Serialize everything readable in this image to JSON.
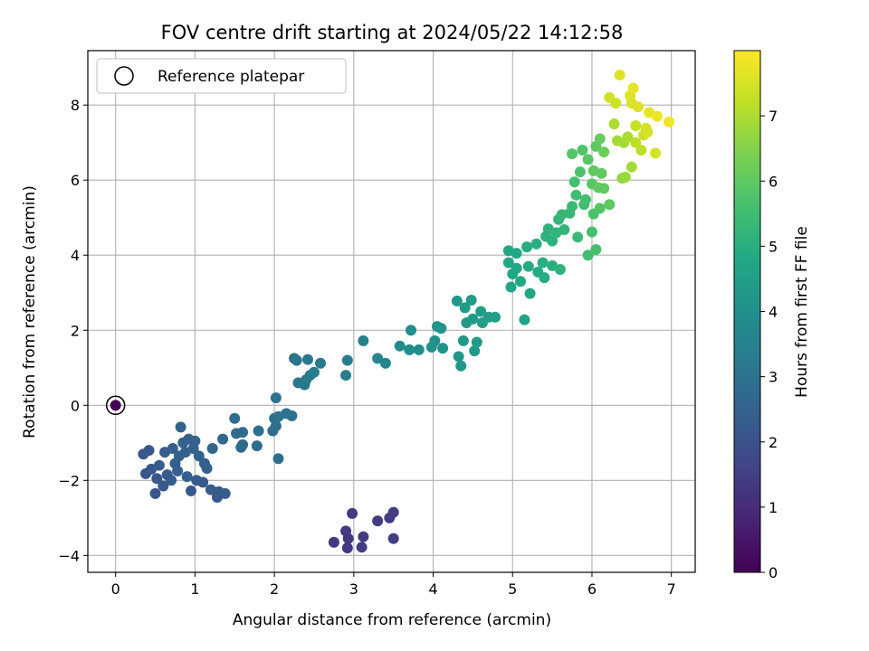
{
  "chart_data": {
    "type": "scatter",
    "title": "FOV centre drift starting at 2024/05/22 14:12:58",
    "xlabel": "Angular distance from reference (arcmin)",
    "ylabel": "Rotation from reference (arcmin)",
    "xlim": [
      -0.35,
      7.3
    ],
    "ylim": [
      -4.45,
      9.45
    ],
    "xticks": [
      0,
      1,
      2,
      3,
      4,
      5,
      6,
      7
    ],
    "yticks": [
      -4,
      -2,
      0,
      2,
      4,
      6,
      8
    ],
    "grid": true,
    "legend": {
      "placement": "top-left",
      "entries": [
        "Reference platepar"
      ]
    },
    "reference_point": {
      "x": 0,
      "y": 0
    },
    "colorbar": {
      "label": "Hours from first FF file",
      "colormap": "viridis",
      "range": [
        0,
        8
      ],
      "ticks": [
        0,
        1,
        2,
        3,
        4,
        5,
        6,
        7
      ]
    },
    "points": [
      [
        0,
        0,
        0.02
      ],
      [
        2.75,
        -3.65,
        1.3
      ],
      [
        2.9,
        -3.35,
        1.3
      ],
      [
        2.92,
        -3.8,
        1.3
      ],
      [
        2.93,
        -3.55,
        1.3
      ],
      [
        2.98,
        -2.88,
        1.35
      ],
      [
        3.1,
        -3.78,
        1.4
      ],
      [
        3.12,
        -3.5,
        1.4
      ],
      [
        3.3,
        -3.08,
        1.4
      ],
      [
        3.45,
        -3.0,
        1.45
      ],
      [
        3.5,
        -2.85,
        1.45
      ],
      [
        3.5,
        -3.55,
        1.45
      ],
      [
        0.35,
        -1.3,
        2.2
      ],
      [
        0.38,
        -1.82,
        2.1
      ],
      [
        0.42,
        -1.2,
        2.2
      ],
      [
        0.45,
        -1.7,
        2.2
      ],
      [
        0.5,
        -2.35,
        2.1
      ],
      [
        0.52,
        -1.95,
        2.2
      ],
      [
        0.55,
        -1.6,
        2.3
      ],
      [
        0.6,
        -2.15,
        2.2
      ],
      [
        0.62,
        -1.25,
        2.3
      ],
      [
        0.65,
        -1.85,
        2.3
      ],
      [
        0.7,
        -2.0,
        2.3
      ],
      [
        0.72,
        -1.15,
        2.4
      ],
      [
        0.75,
        -1.55,
        2.4
      ],
      [
        0.78,
        -1.75,
        2.4
      ],
      [
        0.8,
        -1.35,
        2.4
      ],
      [
        0.82,
        -0.58,
        2.5
      ],
      [
        0.85,
        -1.0,
        2.5
      ],
      [
        0.88,
        -1.25,
        2.5
      ],
      [
        0.9,
        -1.9,
        2.4
      ],
      [
        0.92,
        -0.9,
        2.5
      ],
      [
        0.95,
        -2.28,
        2.2
      ],
      [
        0.98,
        -1.15,
        2.5
      ],
      [
        1.0,
        -0.95,
        2.5
      ],
      [
        1.02,
        -2.0,
        2.3
      ],
      [
        1.05,
        -1.35,
        2.5
      ],
      [
        1.1,
        -2.05,
        2.3
      ],
      [
        1.12,
        -1.55,
        2.4
      ],
      [
        1.15,
        -1.68,
        2.4
      ],
      [
        1.2,
        -2.25,
        2.3
      ],
      [
        1.22,
        -1.15,
        2.6
      ],
      [
        1.28,
        -2.45,
        2.2
      ],
      [
        1.3,
        -2.3,
        2.3
      ],
      [
        1.38,
        -2.35,
        2.3
      ],
      [
        1.35,
        -0.9,
        2.7
      ],
      [
        1.5,
        -0.35,
        2.8
      ],
      [
        1.52,
        -0.75,
        2.8
      ],
      [
        1.58,
        -1.12,
        2.7
      ],
      [
        1.6,
        -0.72,
        2.8
      ],
      [
        1.6,
        -1.05,
        2.7
      ],
      [
        1.78,
        -1.08,
        2.8
      ],
      [
        1.8,
        -0.68,
        2.9
      ],
      [
        1.98,
        -0.68,
        2.9
      ],
      [
        2.0,
        -0.35,
        2.9
      ],
      [
        2.02,
        0.2,
        3.0
      ],
      [
        2.02,
        -0.55,
        2.9
      ],
      [
        2.05,
        -0.3,
        3.0
      ],
      [
        2.05,
        -1.42,
        2.9
      ],
      [
        2.15,
        -0.22,
        3.0
      ],
      [
        2.22,
        -0.28,
        3.0
      ],
      [
        2.25,
        1.25,
        3.1
      ],
      [
        2.28,
        1.2,
        3.1
      ],
      [
        2.3,
        0.6,
        3.2
      ],
      [
        2.38,
        0.55,
        3.2
      ],
      [
        2.4,
        0.68,
        3.2
      ],
      [
        2.42,
        1.22,
        3.2
      ],
      [
        2.45,
        0.8,
        3.3
      ],
      [
        2.5,
        0.88,
        3.3
      ],
      [
        2.58,
        1.12,
        3.3
      ],
      [
        2.9,
        0.8,
        3.4
      ],
      [
        2.92,
        1.2,
        3.4
      ],
      [
        3.12,
        1.72,
        3.5
      ],
      [
        3.3,
        1.25,
        3.6
      ],
      [
        3.4,
        1.12,
        3.6
      ],
      [
        3.58,
        1.58,
        3.8
      ],
      [
        3.7,
        1.48,
        3.9
      ],
      [
        3.72,
        2.0,
        3.9
      ],
      [
        3.82,
        1.48,
        3.9
      ],
      [
        3.98,
        1.55,
        4.0
      ],
      [
        4.02,
        1.72,
        4.0
      ],
      [
        4.05,
        2.1,
        4.1
      ],
      [
        4.1,
        2.05,
        4.1
      ],
      [
        4.12,
        1.52,
        4.0
      ],
      [
        4.3,
        2.78,
        4.2
      ],
      [
        4.32,
        1.3,
        4.2
      ],
      [
        4.35,
        1.05,
        4.2
      ],
      [
        4.38,
        1.72,
        4.2
      ],
      [
        4.4,
        2.6,
        4.3
      ],
      [
        4.42,
        2.2,
        4.3
      ],
      [
        4.48,
        2.8,
        4.3
      ],
      [
        4.5,
        2.3,
        4.3
      ],
      [
        4.52,
        1.45,
        4.3
      ],
      [
        4.55,
        1.68,
        4.3
      ],
      [
        4.6,
        2.5,
        4.4
      ],
      [
        4.62,
        2.2,
        4.4
      ],
      [
        4.7,
        2.35,
        4.4
      ],
      [
        4.78,
        2.35,
        4.4
      ],
      [
        4.95,
        4.12,
        4.8
      ],
      [
        4.95,
        3.8,
        4.8
      ],
      [
        4.98,
        3.15,
        4.7
      ],
      [
        5.0,
        3.5,
        4.8
      ],
      [
        5.05,
        4.05,
        4.8
      ],
      [
        5.05,
        3.65,
        4.8
      ],
      [
        5.1,
        3.3,
        4.8
      ],
      [
        5.15,
        2.28,
        4.6
      ],
      [
        5.18,
        4.22,
        4.9
      ],
      [
        5.2,
        3.7,
        4.9
      ],
      [
        5.22,
        2.98,
        4.7
      ],
      [
        5.3,
        4.3,
        5.0
      ],
      [
        5.32,
        3.55,
        4.9
      ],
      [
        5.38,
        3.8,
        5.0
      ],
      [
        5.4,
        3.4,
        4.9
      ],
      [
        5.42,
        4.5,
        5.1
      ],
      [
        5.45,
        4.7,
        5.1
      ],
      [
        5.5,
        4.38,
        5.1
      ],
      [
        5.5,
        3.72,
        5.0
      ],
      [
        5.55,
        4.6,
        5.2
      ],
      [
        5.58,
        4.95,
        5.2
      ],
      [
        5.6,
        3.62,
        5.1
      ],
      [
        5.62,
        5.08,
        5.3
      ],
      [
        5.65,
        4.68,
        5.2
      ],
      [
        5.72,
        5.12,
        5.3
      ],
      [
        5.75,
        6.7,
        5.8
      ],
      [
        5.75,
        5.3,
        5.4
      ],
      [
        5.78,
        5.95,
        5.6
      ],
      [
        5.8,
        5.6,
        5.5
      ],
      [
        5.82,
        4.48,
        5.4
      ],
      [
        5.85,
        6.22,
        5.7
      ],
      [
        5.88,
        6.8,
        5.8
      ],
      [
        5.9,
        5.35,
        5.5
      ],
      [
        5.92,
        5.48,
        5.6
      ],
      [
        5.95,
        6.55,
        5.9
      ],
      [
        5.95,
        4.0,
        5.5
      ],
      [
        6.0,
        4.62,
        5.6
      ],
      [
        6.0,
        5.9,
        5.9
      ],
      [
        6.02,
        5.1,
        5.7
      ],
      [
        6.02,
        6.25,
        6.0
      ],
      [
        6.05,
        6.9,
        6.0
      ],
      [
        6.05,
        4.15,
        5.6
      ],
      [
        6.08,
        5.8,
        6.0
      ],
      [
        6.1,
        7.1,
        6.1
      ],
      [
        6.1,
        5.25,
        5.8
      ],
      [
        6.12,
        6.18,
        6.0
      ],
      [
        6.15,
        5.78,
        6.0
      ],
      [
        6.15,
        6.75,
        6.2
      ],
      [
        6.22,
        5.35,
        6.0
      ],
      [
        6.22,
        8.2,
        7.4
      ],
      [
        6.28,
        7.5,
        7.0
      ],
      [
        6.3,
        8.05,
        7.4
      ],
      [
        6.32,
        7.05,
        6.9
      ],
      [
        6.35,
        8.8,
        7.6
      ],
      [
        6.38,
        6.05,
        6.7
      ],
      [
        6.4,
        7.0,
        6.9
      ],
      [
        6.42,
        6.08,
        6.8
      ],
      [
        6.45,
        7.15,
        7.0
      ],
      [
        6.48,
        8.25,
        7.6
      ],
      [
        6.5,
        6.35,
        6.9
      ],
      [
        6.5,
        8.05,
        7.6
      ],
      [
        6.52,
        8.45,
        7.7
      ],
      [
        6.55,
        7.0,
        7.2
      ],
      [
        6.55,
        7.45,
        7.3
      ],
      [
        6.58,
        7.95,
        7.6
      ],
      [
        6.62,
        6.8,
        7.2
      ],
      [
        6.65,
        7.2,
        7.4
      ],
      [
        6.68,
        7.38,
        7.5
      ],
      [
        6.7,
        7.28,
        7.5
      ],
      [
        6.72,
        7.8,
        7.7
      ],
      [
        6.8,
        6.72,
        7.5
      ],
      [
        6.82,
        7.7,
        7.8
      ],
      [
        6.97,
        7.55,
        7.8
      ]
    ]
  }
}
